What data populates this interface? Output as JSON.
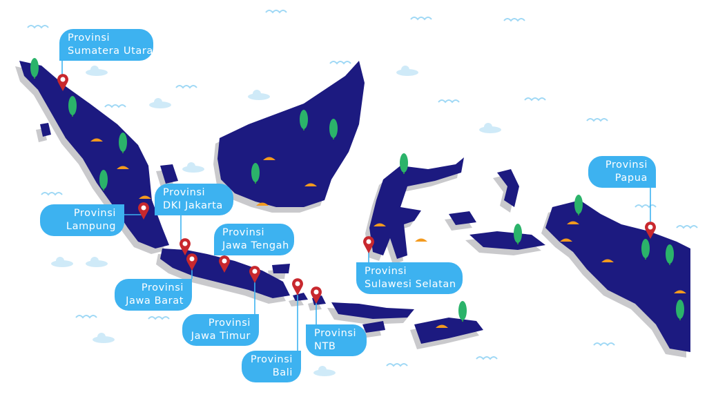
{
  "colors": {
    "land": "#1c1a80",
    "shadow": "#c9c9cc",
    "label": "#3db2f0",
    "pin": "#c8282e",
    "tree": "#2bb36a",
    "mound": "#f39a1e",
    "wave": "#9fd8f5"
  },
  "icons": {
    "pin": "map-pin-icon",
    "tree": "tree-icon",
    "cloud": "cloud-icon",
    "wave": "wave-icon"
  },
  "provinces": [
    {
      "line1": "Provinsi",
      "line2": "Sumatera Utara"
    },
    {
      "line1": "Provinsi",
      "line2": "Lampung"
    },
    {
      "line1": "Provinsi",
      "line2": "DKI Jakarta"
    },
    {
      "line1": "Provinsi",
      "line2": "Jawa Tengah"
    },
    {
      "line1": "Provinsi",
      "line2": "Jawa Barat"
    },
    {
      "line1": "Provinsi",
      "line2": "Jawa Timur"
    },
    {
      "line1": "Provinsi",
      "line2": "Bali"
    },
    {
      "line1": "Provinsi",
      "line2": "NTB"
    },
    {
      "line1": "Provinsi",
      "line2": "Sulawesi Selatan"
    },
    {
      "line1": "Provinsi",
      "line2": "Papua"
    }
  ]
}
